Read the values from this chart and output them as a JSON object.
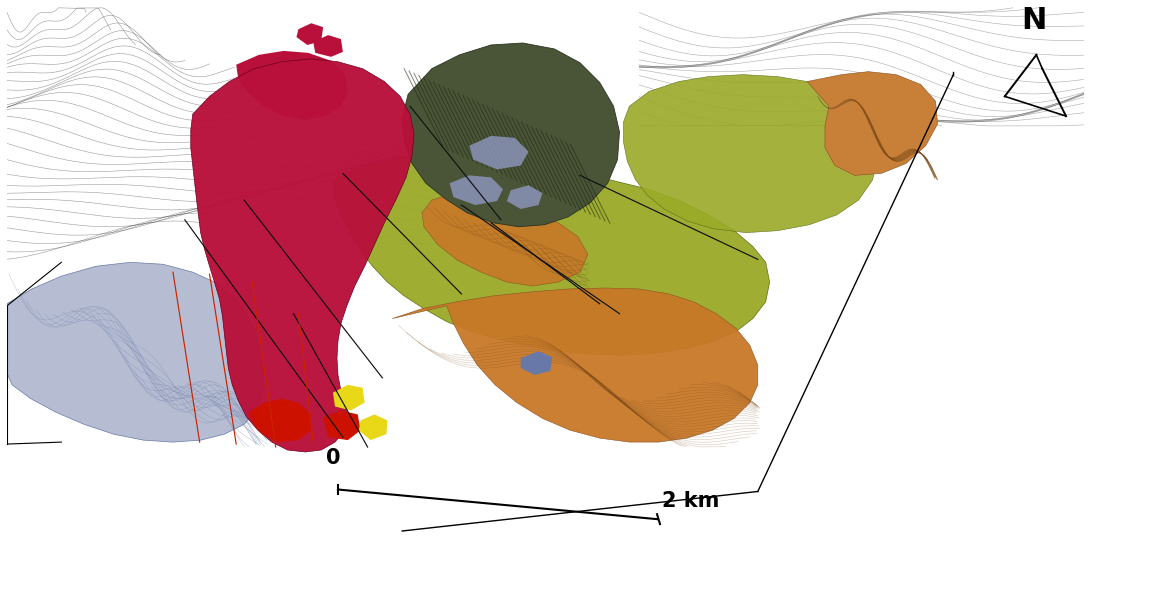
{
  "fig_width": 11.56,
  "fig_height": 6.12,
  "dpi": 100,
  "bg_color": "#ffffff",
  "scale_bar_label_left": "0",
  "scale_bar_label_right": "2 km",
  "north_label": "N",
  "colors": {
    "crimson": "#b8103a",
    "bright_red": "#cc1100",
    "dark_red": "#8b0015",
    "olive_green": "#9aaa28",
    "dark_slate": "#4a5538",
    "slate_blue": "#b0b8d0",
    "periwinkle": "#9098c0",
    "orange_main": "#c87828",
    "orange_light": "#d4903a",
    "orange_upper": "#c88038",
    "yellow": "#e8d818",
    "olive_tan": "#b8a840",
    "contour_gray": "#888888",
    "fault_black": "#1a1a1a",
    "fault_red": "#cc2200"
  }
}
